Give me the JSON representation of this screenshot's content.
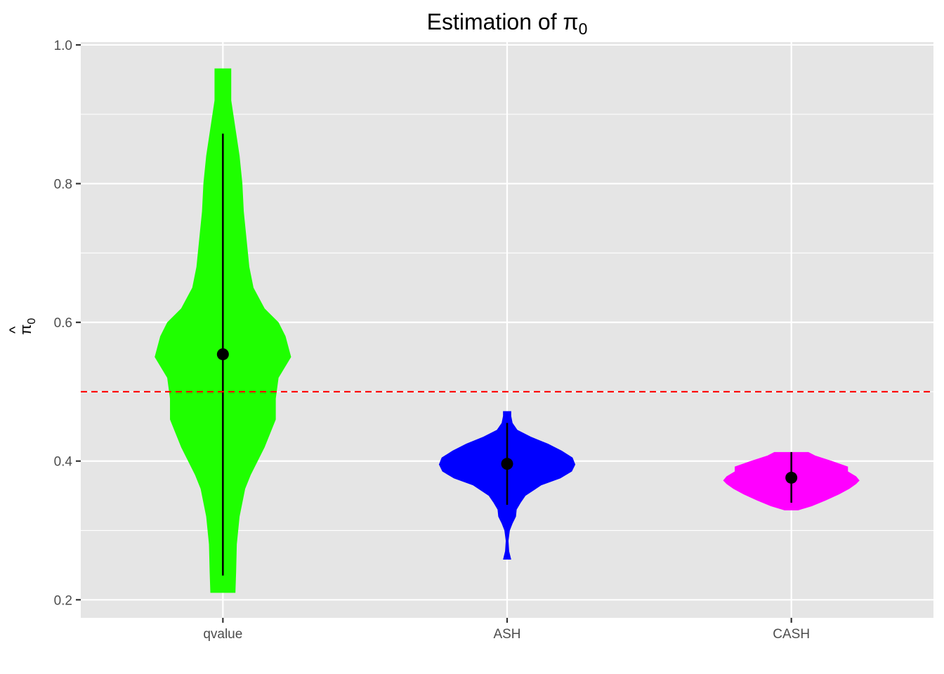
{
  "chart_data": {
    "type": "violin",
    "title": "Estimation of π",
    "title_subscript": "0",
    "ylabel_symbol": "π",
    "ylabel_hat": "^",
    "ylabel_subscript": "0",
    "xlabel": "",
    "categories": [
      "qvalue",
      "ASH",
      "CASH"
    ],
    "ylim": [
      0.174,
      1.004
    ],
    "yticks": [
      0.2,
      0.4,
      0.6,
      0.8,
      1.0
    ],
    "ytick_labels": [
      "0.2",
      "0.4",
      "0.6",
      "0.8",
      "1.0"
    ],
    "reference_line": {
      "y": 0.5,
      "style": "dashed",
      "color": "#ff0000"
    },
    "grid": true,
    "panel_background": "#e5e5e5",
    "series": [
      {
        "category": "qvalue",
        "color": "#1fff00",
        "mean": 0.554,
        "interval": [
          0.235,
          0.872
        ],
        "range": [
          0.21,
          0.966
        ],
        "density": [
          [
            0.21,
            0.09
          ],
          [
            0.24,
            0.095
          ],
          [
            0.28,
            0.1
          ],
          [
            0.32,
            0.12
          ],
          [
            0.36,
            0.16
          ],
          [
            0.38,
            0.2
          ],
          [
            0.4,
            0.25
          ],
          [
            0.42,
            0.3
          ],
          [
            0.44,
            0.34
          ],
          [
            0.46,
            0.38
          ],
          [
            0.49,
            0.38
          ],
          [
            0.52,
            0.4
          ],
          [
            0.55,
            0.49
          ],
          [
            0.58,
            0.45
          ],
          [
            0.6,
            0.4
          ],
          [
            0.62,
            0.3
          ],
          [
            0.65,
            0.22
          ],
          [
            0.68,
            0.19
          ],
          [
            0.72,
            0.17
          ],
          [
            0.76,
            0.15
          ],
          [
            0.8,
            0.14
          ],
          [
            0.84,
            0.12
          ],
          [
            0.88,
            0.09
          ],
          [
            0.92,
            0.06
          ],
          [
            0.95,
            0.06
          ],
          [
            0.966,
            0.06
          ]
        ]
      },
      {
        "category": "ASH",
        "color": "#0000ff",
        "mean": 0.396,
        "interval": [
          0.337,
          0.455
        ],
        "range": [
          0.258,
          0.472
        ],
        "density": [
          [
            0.258,
            0.06
          ],
          [
            0.27,
            0.03
          ],
          [
            0.285,
            0.02
          ],
          [
            0.3,
            0.04
          ],
          [
            0.31,
            0.08
          ],
          [
            0.32,
            0.13
          ],
          [
            0.33,
            0.14
          ],
          [
            0.34,
            0.2
          ],
          [
            0.35,
            0.27
          ],
          [
            0.365,
            0.5
          ],
          [
            0.375,
            0.78
          ],
          [
            0.385,
            0.95
          ],
          [
            0.395,
            1.0
          ],
          [
            0.405,
            0.96
          ],
          [
            0.415,
            0.8
          ],
          [
            0.425,
            0.6
          ],
          [
            0.435,
            0.35
          ],
          [
            0.445,
            0.15
          ],
          [
            0.455,
            0.08
          ],
          [
            0.465,
            0.06
          ],
          [
            0.472,
            0.06
          ]
        ]
      },
      {
        "category": "CASH",
        "color": "#ff00ff",
        "mean": 0.376,
        "interval": [
          0.34,
          0.413
        ],
        "range": [
          0.329,
          0.413
        ],
        "density": [
          [
            0.329,
            0.1
          ],
          [
            0.335,
            0.3
          ],
          [
            0.343,
            0.5
          ],
          [
            0.352,
            0.7
          ],
          [
            0.36,
            0.85
          ],
          [
            0.367,
            0.95
          ],
          [
            0.372,
            1.0
          ],
          [
            0.378,
            0.95
          ],
          [
            0.385,
            0.83
          ],
          [
            0.392,
            0.83
          ],
          [
            0.4,
            0.6
          ],
          [
            0.408,
            0.35
          ],
          [
            0.413,
            0.25
          ]
        ]
      }
    ]
  }
}
